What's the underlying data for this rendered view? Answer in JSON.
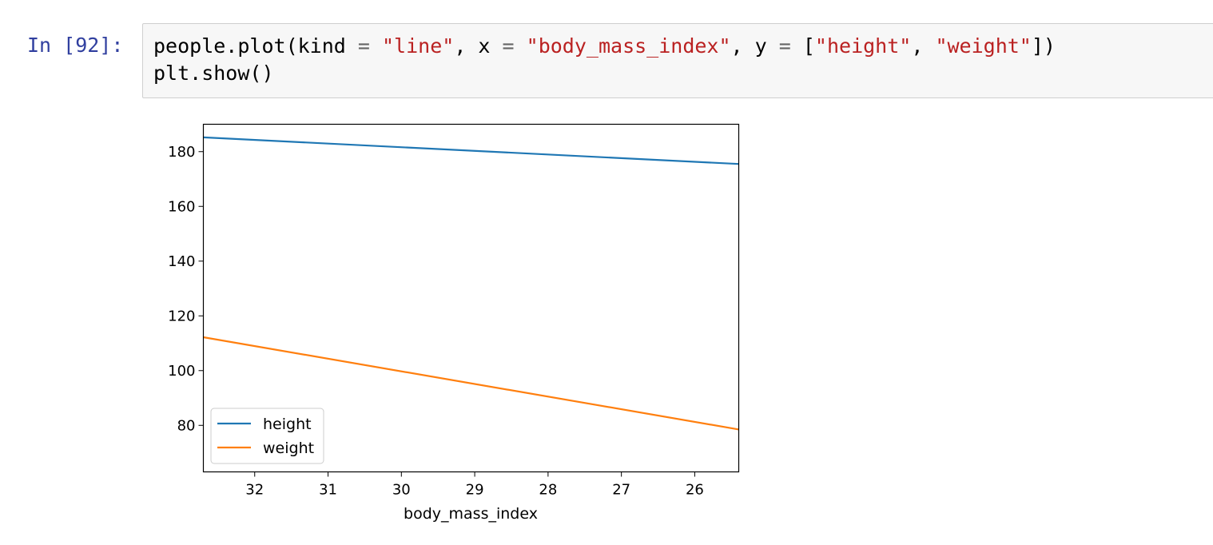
{
  "cell": {
    "prompt": "In [92]:",
    "code_line1": {
      "t1": "people.plot(kind ",
      "t2": "=",
      "t3": " ",
      "t4": "\"line\"",
      "t5": ", x ",
      "t6": "=",
      "t7": " ",
      "t8": "\"body_mass_index\"",
      "t9": ", y ",
      "t10": "=",
      "t11": " [",
      "t12": "\"height\"",
      "t13": ", ",
      "t14": "\"weight\"",
      "t15": "])"
    },
    "code_line2": "plt.show()"
  },
  "colors": {
    "prompt": "#303F9F",
    "string": "#BA2121",
    "height_series": "#1f77b4",
    "weight_series": "#ff7f0e"
  },
  "chart_data": {
    "type": "line",
    "xlabel": "body_mass_index",
    "ylabel": "",
    "xlim": [
      32.7,
      25.4
    ],
    "ylim": [
      63,
      190
    ],
    "x_inverted": true,
    "x_ticks": [
      32,
      31,
      30,
      29,
      28,
      27,
      26
    ],
    "y_ticks": [
      80,
      100,
      120,
      140,
      160,
      180
    ],
    "x": [
      32.7,
      25.4
    ],
    "series": [
      {
        "name": "height",
        "values": [
          185.2,
          175.5
        ],
        "color": "#1f77b4"
      },
      {
        "name": "weight",
        "values": [
          112.2,
          78.5
        ],
        "color": "#ff7f0e"
      }
    ],
    "legend": {
      "position": "lower-left"
    },
    "grid": false
  }
}
